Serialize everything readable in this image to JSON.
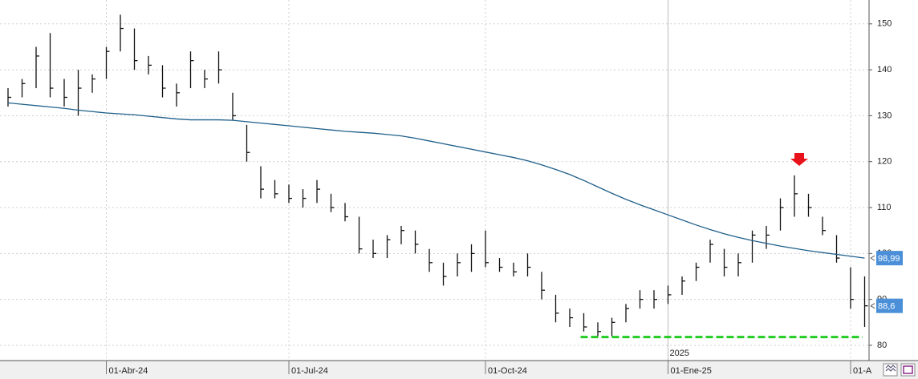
{
  "chart_data": {
    "type": "ohlc",
    "categories": [
      null,
      null,
      null,
      null,
      null,
      null,
      null,
      "01-Abr-24",
      null,
      null,
      null,
      null,
      null,
      null,
      null,
      null,
      null,
      null,
      null,
      null,
      "01-Jul-24",
      null,
      null,
      null,
      null,
      null,
      null,
      null,
      null,
      null,
      null,
      null,
      null,
      null,
      "01-Oct-24",
      null,
      null,
      null,
      null,
      null,
      null,
      null,
      null,
      null,
      null,
      null,
      null,
      "01-Ene-25",
      null,
      null,
      null,
      null,
      null,
      null,
      null,
      null,
      null,
      null,
      null,
      null,
      "01-A",
      null
    ],
    "high": [
      136,
      138,
      145,
      148,
      138,
      140,
      139,
      145,
      152,
      149,
      143,
      141,
      137,
      144,
      140,
      144,
      135,
      128,
      119,
      116,
      115,
      114,
      116,
      113,
      111,
      108,
      103,
      104,
      106,
      105,
      101,
      98,
      100,
      102,
      105,
      99,
      98,
      100,
      96,
      91,
      88,
      87,
      85,
      86,
      89,
      92,
      92,
      93,
      95,
      98,
      103,
      101,
      100,
      105,
      106,
      112,
      117,
      113,
      108,
      104,
      97,
      95
    ],
    "low": [
      132,
      134,
      136,
      134,
      132,
      130,
      135,
      138,
      144,
      140,
      139,
      134,
      132,
      136,
      136,
      137,
      129,
      120,
      112,
      112,
      111,
      110,
      111,
      109,
      107,
      100,
      99,
      99,
      102,
      100,
      96,
      93,
      95,
      96,
      97,
      96,
      95,
      95,
      90,
      85,
      84,
      83,
      82,
      82,
      85,
      88,
      88,
      89,
      91,
      94,
      98,
      95,
      95,
      98,
      101,
      105,
      108,
      108,
      104,
      98,
      88,
      84
    ],
    "close": [
      134,
      137,
      143,
      136,
      134,
      136,
      138,
      144,
      149,
      142,
      141,
      136,
      135,
      142,
      138,
      140,
      130,
      122,
      114,
      113,
      112,
      112,
      114,
      110,
      108,
      101,
      100,
      103,
      105,
      102,
      98,
      95,
      98,
      100,
      98,
      97,
      96,
      97,
      92,
      87,
      86,
      84,
      83,
      85,
      88,
      90,
      90,
      91,
      94,
      97,
      102,
      97,
      98,
      104,
      104,
      110,
      113,
      110,
      105,
      99,
      90,
      88.6
    ],
    "bar_color": "#111111",
    "moving_average": {
      "color": "#1f5f8b",
      "values": [
        132.8,
        132.5,
        132.2,
        131.9,
        131.6,
        131.2,
        130.9,
        130.6,
        130.4,
        130.2,
        129.9,
        129.6,
        129.3,
        129.1,
        129.1,
        129.1,
        129.0,
        128.7,
        128.4,
        128.1,
        127.8,
        127.5,
        127.2,
        126.9,
        126.6,
        126.4,
        126.2,
        125.9,
        125.6,
        125.1,
        124.5,
        123.9,
        123.3,
        122.7,
        122.1,
        121.5,
        120.9,
        120.2,
        119.3,
        118.3,
        117.2,
        115.9,
        114.5,
        113.1,
        111.8,
        110.6,
        109.5,
        108.4,
        107.3,
        106.2,
        105.2,
        104.3,
        103.5,
        102.8,
        102.2,
        101.6,
        101.1,
        100.6,
        100.2,
        99.8,
        99.4,
        98.99
      ]
    },
    "ylim": [
      77.2,
      155.2
    ],
    "yticks": [
      80,
      90,
      100,
      110,
      120,
      130,
      140,
      150
    ],
    "grid": true,
    "year_label": "2025",
    "support_line": {
      "value": 81.8,
      "color": "#22cc22"
    },
    "price_markers": [
      {
        "value": 98.99,
        "label": "98,99",
        "color": "#4a8fd8"
      },
      {
        "value": 88.6,
        "label": "88,6",
        "color": "#4a8fd8"
      }
    ]
  }
}
